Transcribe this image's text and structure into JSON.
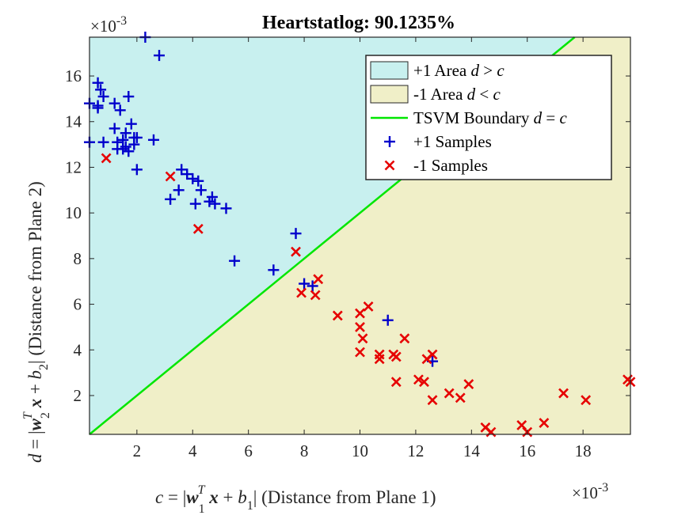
{
  "chart_data": {
    "type": "scatter",
    "title": "Heartstatlog: 90.1235%",
    "xlabel": "c = |w_1^T x + b_1|   (Distance from Plane 1)",
    "ylabel": "d = |w_2^T x + b_2|   (Distance from Plane 2)",
    "x_multiplier": "×10^-3",
    "y_multiplier": "×10^-3",
    "xlim": [
      0.3,
      19.7
    ],
    "ylim": [
      0.3,
      17.7
    ],
    "x_ticks": [
      2,
      4,
      6,
      8,
      10,
      12,
      14,
      16,
      18
    ],
    "y_ticks": [
      2,
      4,
      6,
      8,
      10,
      12,
      14,
      16
    ],
    "grid": false,
    "legend_position": "top-right",
    "legend": [
      {
        "label": "+1 Area d > c",
        "kind": "patch",
        "color": "#c8f0ef"
      },
      {
        "label": "-1 Area d < c",
        "kind": "patch",
        "color": "#f0efc8"
      },
      {
        "label": "TSVM Boundary d = c",
        "kind": "line",
        "color": "#00e600"
      },
      {
        "label": "+1 Samples",
        "kind": "plus",
        "color": "#0000cc"
      },
      {
        "label": "-1 Samples",
        "kind": "cross",
        "color": "#e60000"
      }
    ],
    "boundary": {
      "name": "TSVM Boundary",
      "x": [
        0.3,
        17.7
      ],
      "y": [
        0.3,
        17.7
      ]
    },
    "series": [
      {
        "name": "+1 Samples",
        "marker": "plus",
        "color": "#0000cc",
        "points": [
          [
            2.3,
            17.7
          ],
          [
            2.8,
            16.9
          ],
          [
            0.6,
            15.7
          ],
          [
            0.7,
            15.4
          ],
          [
            0.8,
            15.1
          ],
          [
            1.7,
            15.1
          ],
          [
            0.3,
            14.8
          ],
          [
            0.6,
            14.7
          ],
          [
            1.2,
            14.8
          ],
          [
            1.4,
            14.5
          ],
          [
            0.6,
            14.6
          ],
          [
            1.8,
            13.9
          ],
          [
            1.2,
            13.7
          ],
          [
            1.6,
            13.5
          ],
          [
            2.0,
            13.3
          ],
          [
            0.3,
            13.1
          ],
          [
            0.8,
            13.1
          ],
          [
            1.3,
            13.1
          ],
          [
            1.5,
            13.2
          ],
          [
            1.9,
            13.3
          ],
          [
            2.6,
            13.2
          ],
          [
            1.3,
            12.8
          ],
          [
            1.6,
            12.9
          ],
          [
            1.9,
            13.0
          ],
          [
            1.5,
            12.8
          ],
          [
            1.7,
            12.7
          ],
          [
            2.0,
            11.9
          ],
          [
            3.6,
            11.9
          ],
          [
            3.8,
            11.7
          ],
          [
            4.0,
            11.5
          ],
          [
            4.2,
            11.4
          ],
          [
            3.5,
            11.0
          ],
          [
            4.3,
            11.0
          ],
          [
            3.2,
            10.6
          ],
          [
            4.6,
            10.5
          ],
          [
            4.7,
            10.7
          ],
          [
            4.1,
            10.4
          ],
          [
            4.8,
            10.4
          ],
          [
            5.2,
            10.2
          ],
          [
            5.5,
            7.9
          ],
          [
            6.9,
            7.5
          ],
          [
            7.7,
            9.1
          ],
          [
            8.0,
            6.9
          ],
          [
            8.3,
            6.8
          ],
          [
            11.0,
            5.3
          ],
          [
            12.6,
            3.5
          ]
        ]
      },
      {
        "name": "-1 Samples",
        "marker": "cross",
        "color": "#e60000",
        "points": [
          [
            0.9,
            12.4
          ],
          [
            3.2,
            11.6
          ],
          [
            4.2,
            9.3
          ],
          [
            7.7,
            8.3
          ],
          [
            8.5,
            7.1
          ],
          [
            7.9,
            6.5
          ],
          [
            8.4,
            6.4
          ],
          [
            10.3,
            5.9
          ],
          [
            9.2,
            5.5
          ],
          [
            10.0,
            5.6
          ],
          [
            10.0,
            5.0
          ],
          [
            10.1,
            4.5
          ],
          [
            11.6,
            4.5
          ],
          [
            10.0,
            3.9
          ],
          [
            10.7,
            3.8
          ],
          [
            10.7,
            3.6
          ],
          [
            11.2,
            3.8
          ],
          [
            11.3,
            3.7
          ],
          [
            12.4,
            3.6
          ],
          [
            12.6,
            3.8
          ],
          [
            11.3,
            2.6
          ],
          [
            12.1,
            2.7
          ],
          [
            12.3,
            2.6
          ],
          [
            13.2,
            2.1
          ],
          [
            13.6,
            1.9
          ],
          [
            13.9,
            2.5
          ],
          [
            12.6,
            1.8
          ],
          [
            14.5,
            0.6
          ],
          [
            14.7,
            0.4
          ],
          [
            15.8,
            0.7
          ],
          [
            16.0,
            0.4
          ],
          [
            16.6,
            0.8
          ],
          [
            17.3,
            2.1
          ],
          [
            18.1,
            1.8
          ],
          [
            19.6,
            2.7
          ],
          [
            19.7,
            2.6
          ]
        ]
      }
    ]
  }
}
